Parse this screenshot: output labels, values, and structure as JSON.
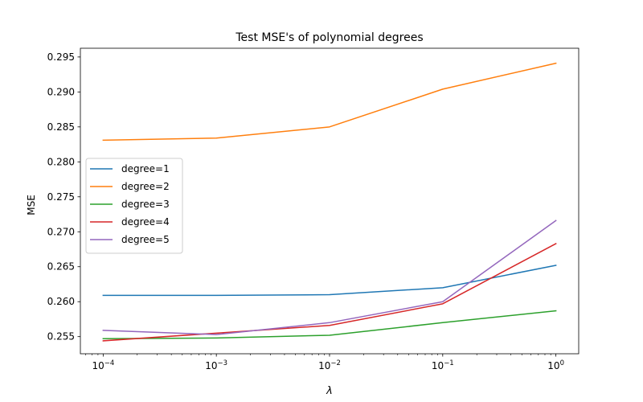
{
  "chart_data": {
    "type": "line",
    "title": "Test MSE's of polynomial degrees",
    "xlabel": "λ",
    "ylabel": "MSE",
    "x_scale": "log",
    "x": [
      0.0001,
      0.001,
      0.01,
      0.1,
      1
    ],
    "x_tick_labels": [
      {
        "base": "10",
        "exp": "−4"
      },
      {
        "base": "10",
        "exp": "−3"
      },
      {
        "base": "10",
        "exp": "−2"
      },
      {
        "base": "10",
        "exp": "−1"
      },
      {
        "base": "10",
        "exp": "0"
      }
    ],
    "xlim": [
      6.29e-05,
      1.59
    ],
    "ylim": [
      0.25255,
      0.29625
    ],
    "y_ticks": [
      0.255,
      0.26,
      0.265,
      0.27,
      0.275,
      0.28,
      0.285,
      0.29,
      0.295
    ],
    "y_tick_labels": [
      "0.255",
      "0.260",
      "0.265",
      "0.270",
      "0.275",
      "0.280",
      "0.285",
      "0.290",
      "0.295"
    ],
    "grid": false,
    "legend_position": "center-left",
    "series": [
      {
        "name": "degree=1",
        "color": "#1f77b4",
        "values": [
          0.2609,
          0.2609,
          0.261,
          0.262,
          0.2652
        ]
      },
      {
        "name": "degree=2",
        "color": "#ff7f0e",
        "values": [
          0.2831,
          0.2834,
          0.285,
          0.2904,
          0.2941
        ]
      },
      {
        "name": "degree=3",
        "color": "#2ca02c",
        "values": [
          0.2547,
          0.2548,
          0.2552,
          0.257,
          0.2587
        ]
      },
      {
        "name": "degree=4",
        "color": "#d62728",
        "values": [
          0.2544,
          0.2555,
          0.2566,
          0.2597,
          0.2683
        ]
      },
      {
        "name": "degree=5",
        "color": "#9467bd",
        "values": [
          0.2559,
          0.2553,
          0.257,
          0.26,
          0.2716
        ]
      }
    ]
  }
}
